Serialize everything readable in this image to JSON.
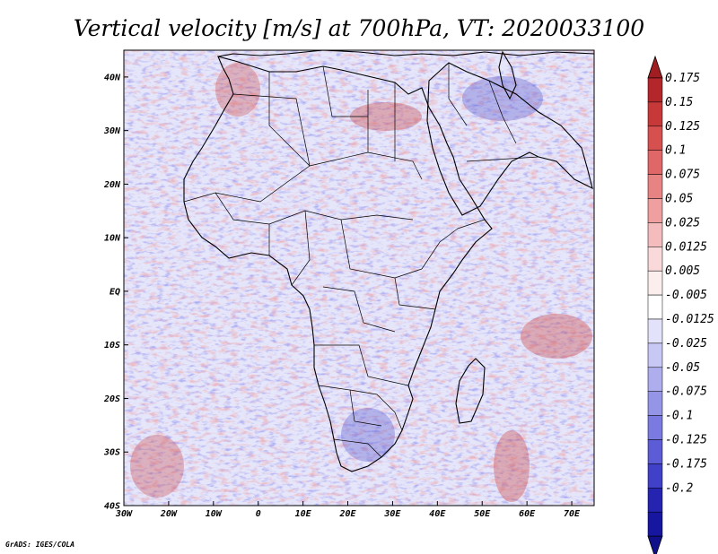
{
  "title": "Vertical velocity [m/s] at 700hPa, VT: 2020033100",
  "credit": "GrADS: IGES/COLA",
  "axes": {
    "lon_labels": [
      "30W",
      "20W",
      "10W",
      "0",
      "10E",
      "20E",
      "30E",
      "40E",
      "50E",
      "60E",
      "70E"
    ],
    "lat_labels": [
      "40N",
      "30N",
      "20N",
      "10N",
      "EQ",
      "10S",
      "20S",
      "30S",
      "40S"
    ],
    "lon_range": [
      -30,
      75
    ],
    "lat_range": [
      -40,
      45
    ]
  },
  "colorbar": {
    "labels": [
      "0.175",
      "0.15",
      "0.125",
      "0.1",
      "0.075",
      "0.05",
      "0.025",
      "0.0125",
      "0.005",
      "-0.005",
      "-0.0125",
      "-0.025",
      "-0.05",
      "-0.075",
      "-0.1",
      "-0.125",
      "-0.175",
      "-0.2"
    ],
    "colors": [
      "#b3262a",
      "#c73838",
      "#d65050",
      "#e06767",
      "#e88383",
      "#ef9f9f",
      "#f4bcbc",
      "#f9d9d9",
      "#fdeeee",
      "#ffffff",
      "#e2e2fb",
      "#c8c8f5",
      "#aeaeee",
      "#9595e8",
      "#7a7ae0",
      "#5c5cd6",
      "#4040c8",
      "#2424b0",
      "#1616a0"
    ],
    "tip_top_color": "#a01e22",
    "tip_bottom_color": "#10108a"
  },
  "map": {
    "field": "vertical velocity (omega)",
    "level": "700hPa",
    "valid_time": "2020033100",
    "background_color": "#e6e6fa"
  }
}
